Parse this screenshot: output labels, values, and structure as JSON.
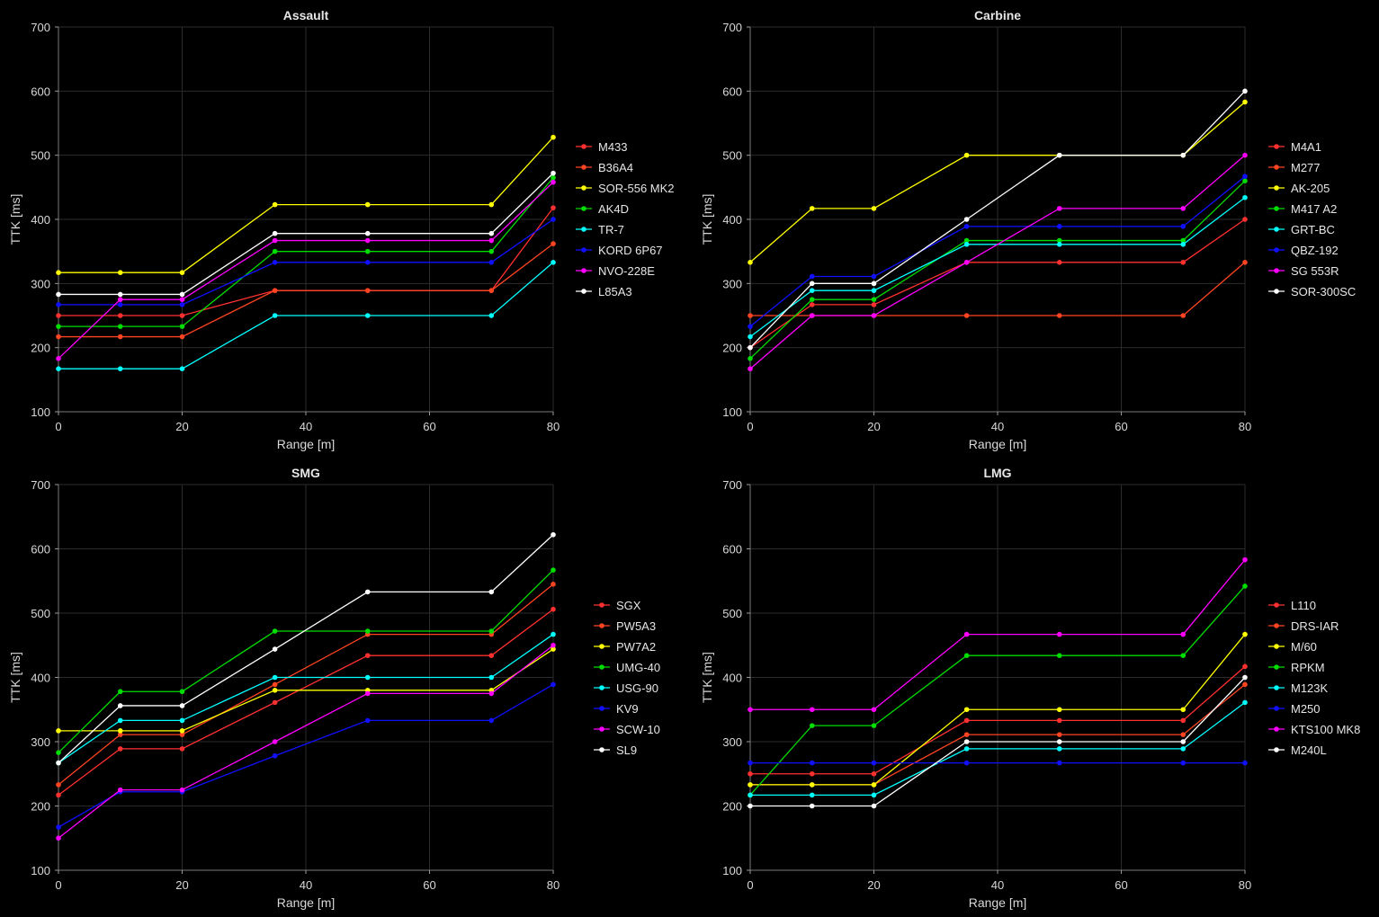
{
  "chart_data": [
    {
      "type": "line",
      "title": "Assault",
      "xlabel": "Range [m]",
      "ylabel": "TTK [ms]",
      "xlim": [
        0,
        80
      ],
      "ylim": [
        100,
        700
      ],
      "xticks": [
        0,
        20,
        40,
        60,
        80
      ],
      "yticks": [
        100,
        200,
        300,
        400,
        500,
        600,
        700
      ],
      "grid": true,
      "legend": "right",
      "series": [
        {
          "name": "M433",
          "color": "#ff3030",
          "x": [
            0,
            10,
            20,
            35,
            50,
            70,
            80
          ],
          "y": [
            250,
            250,
            250,
            289,
            289,
            289,
            418
          ]
        },
        {
          "name": "B36A4",
          "color": "#ff4422",
          "x": [
            0,
            10,
            20,
            35,
            50,
            70,
            80
          ],
          "y": [
            217,
            217,
            217,
            289,
            289,
            289,
            362
          ]
        },
        {
          "name": "SOR-556 MK2",
          "color": "#ffff00",
          "x": [
            0,
            10,
            20,
            35,
            50,
            70,
            80
          ],
          "y": [
            317,
            317,
            317,
            423,
            423,
            423,
            528
          ]
        },
        {
          "name": "AK4D",
          "color": "#00dd00",
          "x": [
            0,
            10,
            20,
            35,
            50,
            70,
            80
          ],
          "y": [
            233,
            233,
            233,
            350,
            350,
            350,
            465
          ]
        },
        {
          "name": "TR-7",
          "color": "#00ffff",
          "x": [
            0,
            10,
            20,
            35,
            50,
            70,
            80
          ],
          "y": [
            167,
            167,
            167,
            250,
            250,
            250,
            333
          ]
        },
        {
          "name": "KORD 6P67",
          "color": "#1010ff",
          "x": [
            0,
            10,
            20,
            35,
            50,
            70,
            80
          ],
          "y": [
            267,
            267,
            267,
            333,
            333,
            333,
            400
          ]
        },
        {
          "name": "NVO-228E",
          "color": "#ff00ff",
          "x": [
            0,
            10,
            20,
            35,
            50,
            70,
            80
          ],
          "y": [
            183,
            275,
            275,
            367,
            367,
            367,
            458
          ]
        },
        {
          "name": "L85A3",
          "color": "#ffffff",
          "x": [
            0,
            10,
            20,
            35,
            50,
            70,
            80
          ],
          "y": [
            283,
            283,
            283,
            378,
            378,
            378,
            472
          ]
        }
      ]
    },
    {
      "type": "line",
      "title": "Carbine",
      "xlabel": "Range [m]",
      "ylabel": "TTK [ms]",
      "xlim": [
        0,
        80
      ],
      "ylim": [
        100,
        700
      ],
      "xticks": [
        0,
        20,
        40,
        60,
        80
      ],
      "yticks": [
        100,
        200,
        300,
        400,
        500,
        600,
        700
      ],
      "grid": true,
      "legend": "right",
      "series": [
        {
          "name": "M4A1",
          "color": "#ff3030",
          "x": [
            0,
            10,
            20,
            35,
            50,
            70,
            80
          ],
          "y": [
            200,
            267,
            267,
            333,
            333,
            333,
            400
          ]
        },
        {
          "name": "M277",
          "color": "#ff4422",
          "x": [
            0,
            10,
            20,
            35,
            50,
            70,
            80
          ],
          "y": [
            250,
            250,
            250,
            250,
            250,
            250,
            333
          ]
        },
        {
          "name": "AK-205",
          "color": "#ffff00",
          "x": [
            0,
            10,
            20,
            35,
            50,
            70,
            80
          ],
          "y": [
            333,
            417,
            417,
            500,
            500,
            500,
            583
          ]
        },
        {
          "name": "M417 A2",
          "color": "#00dd00",
          "x": [
            0,
            10,
            20,
            35,
            50,
            70,
            80
          ],
          "y": [
            183,
            275,
            275,
            367,
            367,
            367,
            460
          ]
        },
        {
          "name": "GRT-BC",
          "color": "#00ffff",
          "x": [
            0,
            10,
            20,
            35,
            50,
            70,
            80
          ],
          "y": [
            217,
            289,
            289,
            361,
            361,
            361,
            434
          ]
        },
        {
          "name": "QBZ-192",
          "color": "#1010ff",
          "x": [
            0,
            10,
            20,
            35,
            50,
            70,
            80
          ],
          "y": [
            233,
            311,
            311,
            389,
            389,
            389,
            467
          ]
        },
        {
          "name": "SG 553R",
          "color": "#ff00ff",
          "x": [
            0,
            10,
            20,
            35,
            50,
            70,
            80
          ],
          "y": [
            167,
            250,
            250,
            333,
            417,
            417,
            500
          ]
        },
        {
          "name": "SOR-300SC",
          "color": "#ffffff",
          "x": [
            0,
            10,
            20,
            35,
            50,
            70,
            80
          ],
          "y": [
            200,
            300,
            300,
            400,
            500,
            500,
            600
          ]
        }
      ]
    },
    {
      "type": "line",
      "title": "SMG",
      "xlabel": "Range [m]",
      "ylabel": "TTK [ms]",
      "xlim": [
        0,
        80
      ],
      "ylim": [
        100,
        700
      ],
      "xticks": [
        0,
        20,
        40,
        60,
        80
      ],
      "yticks": [
        100,
        200,
        300,
        400,
        500,
        600,
        700
      ],
      "grid": true,
      "legend": "right",
      "series": [
        {
          "name": "SGX",
          "color": "#ff3030",
          "x": [
            0,
            10,
            20,
            35,
            50,
            70,
            80
          ],
          "y": [
            217,
            289,
            289,
            361,
            434,
            434,
            506
          ]
        },
        {
          "name": "PW5A3",
          "color": "#ff4422",
          "x": [
            0,
            10,
            20,
            35,
            50,
            70,
            80
          ],
          "y": [
            233,
            311,
            311,
            389,
            467,
            467,
            545
          ]
        },
        {
          "name": "PW7A2",
          "color": "#ffff00",
          "x": [
            0,
            10,
            20,
            35,
            50,
            70,
            80
          ],
          "y": [
            317,
            317,
            317,
            380,
            380,
            380,
            444
          ]
        },
        {
          "name": "UMG-40",
          "color": "#00dd00",
          "x": [
            0,
            10,
            20,
            35,
            50,
            70,
            80
          ],
          "y": [
            283,
            378,
            378,
            472,
            472,
            472,
            567
          ]
        },
        {
          "name": "USG-90",
          "color": "#00ffff",
          "x": [
            0,
            10,
            20,
            35,
            50,
            70,
            80
          ],
          "y": [
            267,
            333,
            333,
            400,
            400,
            400,
            467
          ]
        },
        {
          "name": "KV9",
          "color": "#1010ff",
          "x": [
            0,
            10,
            20,
            35,
            50,
            70,
            80
          ],
          "y": [
            167,
            222,
            222,
            278,
            333,
            333,
            389
          ]
        },
        {
          "name": "SCW-10",
          "color": "#ff00ff",
          "x": [
            0,
            10,
            20,
            35,
            50,
            70,
            80
          ],
          "y": [
            150,
            225,
            225,
            300,
            375,
            375,
            450
          ]
        },
        {
          "name": "SL9",
          "color": "#ffffff",
          "x": [
            0,
            10,
            20,
            35,
            50,
            70,
            80
          ],
          "y": [
            267,
            356,
            356,
            444,
            533,
            533,
            622
          ]
        }
      ]
    },
    {
      "type": "line",
      "title": "LMG",
      "xlabel": "Range [m]",
      "ylabel": "TTK [ms]",
      "xlim": [
        0,
        80
      ],
      "ylim": [
        100,
        700
      ],
      "xticks": [
        0,
        20,
        40,
        60,
        80
      ],
      "yticks": [
        100,
        200,
        300,
        400,
        500,
        600,
        700
      ],
      "grid": true,
      "legend": "right",
      "series": [
        {
          "name": "L110",
          "color": "#ff3030",
          "x": [
            0,
            10,
            20,
            35,
            50,
            70,
            80
          ],
          "y": [
            250,
            250,
            250,
            333,
            333,
            333,
            417
          ]
        },
        {
          "name": "DRS-IAR",
          "color": "#ff4422",
          "x": [
            0,
            10,
            20,
            35,
            50,
            70,
            80
          ],
          "y": [
            233,
            233,
            233,
            311,
            311,
            311,
            389
          ]
        },
        {
          "name": "M/60",
          "color": "#ffff00",
          "x": [
            0,
            10,
            20,
            35,
            50,
            70,
            80
          ],
          "y": [
            233,
            233,
            233,
            350,
            350,
            350,
            467
          ]
        },
        {
          "name": "RPKM",
          "color": "#00dd00",
          "x": [
            0,
            10,
            20,
            35,
            50,
            70,
            80
          ],
          "y": [
            217,
            325,
            325,
            434,
            434,
            434,
            542
          ]
        },
        {
          "name": "M123K",
          "color": "#00ffff",
          "x": [
            0,
            10,
            20,
            35,
            50,
            70,
            80
          ],
          "y": [
            217,
            217,
            217,
            289,
            289,
            289,
            361
          ]
        },
        {
          "name": "M250",
          "color": "#1010ff",
          "x": [
            0,
            10,
            20,
            35,
            50,
            70,
            80
          ],
          "y": [
            267,
            267,
            267,
            267,
            267,
            267,
            267
          ]
        },
        {
          "name": "KTS100 MK8",
          "color": "#ff00ff",
          "x": [
            0,
            10,
            20,
            35,
            50,
            70,
            80
          ],
          "y": [
            350,
            350,
            350,
            467,
            467,
            467,
            583
          ]
        },
        {
          "name": "M240L",
          "color": "#ffffff",
          "x": [
            0,
            10,
            20,
            35,
            50,
            70,
            80
          ],
          "y": [
            200,
            200,
            200,
            300,
            300,
            300,
            400
          ]
        }
      ]
    }
  ]
}
